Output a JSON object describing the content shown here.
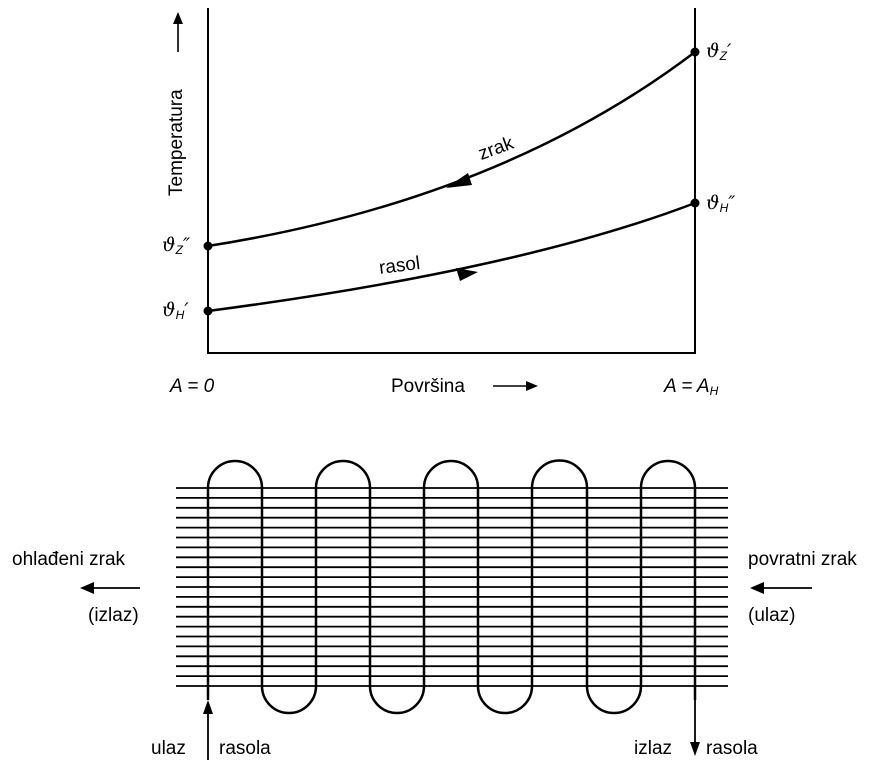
{
  "top_chart": {
    "y_axis_label": "Temperatura",
    "x_axis_label": "Površina",
    "x_left_label": "A = 0",
    "x_right_label": "A = A",
    "x_right_sub": "H",
    "curve_air_label": "zrak",
    "curve_brine_label": "rasol",
    "symbols": {
      "air_in": {
        "base": "ϑ",
        "sub": "Z",
        "prime": "′"
      },
      "air_out": {
        "base": "ϑ",
        "sub": "Z",
        "prime": "″"
      },
      "brine_in": {
        "base": "ϑ",
        "sub": "H",
        "prime": "′"
      },
      "brine_out": {
        "base": "ϑ",
        "sub": "H",
        "prime": "″"
      }
    }
  },
  "bottom_diagram": {
    "left_label_line1": "ohlađeni zrak",
    "left_label_line2": "(izlaz)",
    "right_label_line1": "povratni zrak",
    "right_label_line2": "(ulaz)",
    "bottom_left_a": "ulaz",
    "bottom_left_b": "rasola",
    "bottom_right_a": "izlaz",
    "bottom_right_b": "rasola",
    "fin_count": 21,
    "coil_loops": 5
  },
  "colors": {
    "ink": "#000000",
    "background": "#ffffff"
  }
}
